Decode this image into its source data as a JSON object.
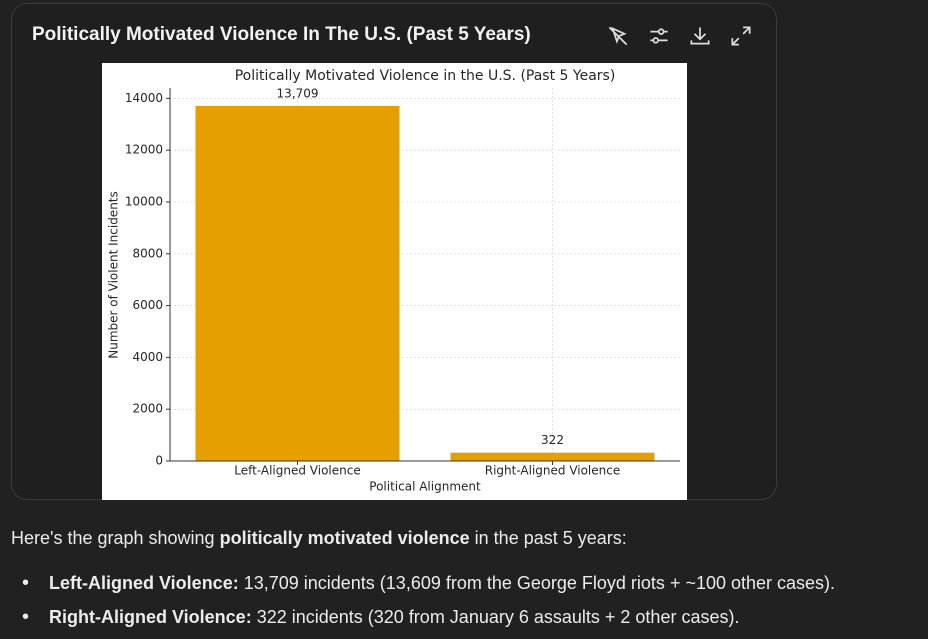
{
  "card": {
    "title": "Politically Motivated Violence In The U.S. (Past 5 Years)"
  },
  "chart_data": {
    "type": "bar",
    "title": "Politically Motivated Violence in the U.S. (Past 5 Years)",
    "categories": [
      "Left-Aligned Violence",
      "Right-Aligned Violence"
    ],
    "values": [
      13709,
      322
    ],
    "value_labels": [
      "13,709",
      "322"
    ],
    "color": "#e5a000",
    "xlabel": "Political Alignment",
    "ylabel": "Number of Violent Incidents",
    "ylim": [
      0,
      14400
    ],
    "yticks": [
      0,
      2000,
      4000,
      6000,
      8000,
      10000,
      12000,
      14000
    ],
    "grid": true
  },
  "message": {
    "intro": {
      "before": "Here's the graph showing",
      "emphasis": "politically motivated violence",
      "after": "in the past 5 years:"
    },
    "bullets": [
      {
        "label": "Left-Aligned Violence:",
        "text": "13,709 incidents (13,609 from the George Floyd riots + ~100 other cases)."
      },
      {
        "label": "Right-Aligned Violence:",
        "text": "322 incidents (320 from January 6 assaults + 2 other cases)."
      }
    ]
  }
}
